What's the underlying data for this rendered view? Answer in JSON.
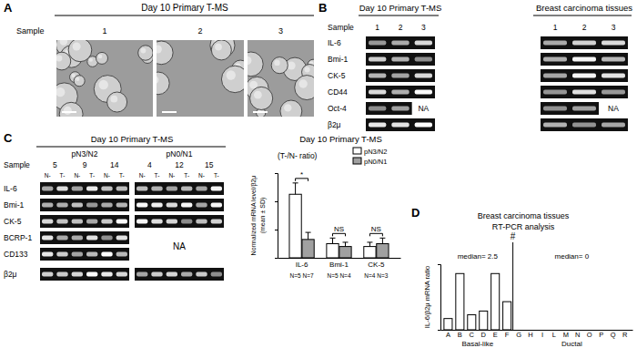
{
  "chart_data": [
    {
      "type": "bar",
      "title": "Day 10 Primary T-MS",
      "subtitle": "(T-/N- ratio)",
      "ylabel": "Normalized mRNA level/β2μ (mean ± SD)",
      "categories": [
        "IL-6",
        "Bmi-1",
        "CK-5"
      ],
      "series": [
        {
          "name": "pN3/N2",
          "color": "#ffffff",
          "values": [
            4.5,
            1.0,
            0.8
          ],
          "errors": [
            0.8,
            0.4,
            0.3
          ],
          "n_labels": [
            "N=5",
            "N=5",
            "N=4"
          ]
        },
        {
          "name": "pN0/N1",
          "color": "#a0a0a0",
          "values": [
            1.3,
            0.8,
            1.0
          ],
          "errors": [
            0.5,
            0.3,
            0.4
          ],
          "n_labels": [
            "N=7",
            "N=4",
            "N=3"
          ]
        }
      ],
      "significance": [
        "*",
        "NS",
        "NS"
      ],
      "ylim": [
        0,
        6
      ],
      "yticks": [
        0,
        2,
        4,
        6
      ],
      "tick_labels": "x",
      "legend": "top-right"
    },
    {
      "type": "bar",
      "title": "Breast carcinoma tissues",
      "subtitle": "RT-PCR analysis",
      "ylabel": "IL-6/β2μ mRNA ratio",
      "color": "#ffffff",
      "divider_label": "#",
      "groups": [
        {
          "label": "Basal-like",
          "annotation": "median= 2.5",
          "categories": [
            "A",
            "B",
            "C",
            "D",
            "E",
            "F"
          ],
          "values": [
            1.2,
            6,
            1.6,
            2,
            6,
            3
          ]
        },
        {
          "label": "Ductal",
          "annotation": "median= 0",
          "categories": [
            "G",
            "H",
            "I",
            "L",
            "M",
            "N",
            "O",
            "P",
            "Q",
            "R"
          ],
          "values": [
            0,
            0,
            0,
            0,
            0,
            0,
            0,
            0,
            0,
            0
          ]
        }
      ],
      "ylim": [
        0,
        7
      ],
      "yticks": [
        0,
        7
      ],
      "tick_labels": "x"
    }
  ],
  "figure": {
    "A": {
      "letter": "A",
      "title": "Day 10 Primary T-MS",
      "sample_label": "Sample",
      "samples": [
        "1",
        "2",
        "3"
      ]
    },
    "B": {
      "letter": "B",
      "na": "NA",
      "rows": [
        {
          "label": "IL-6"
        },
        {
          "label": "Bmi-1"
        },
        {
          "label": "CK-5"
        },
        {
          "label": "CD44"
        },
        {
          "label": "Oct-4",
          "missing": true
        },
        {
          "label": "β2μ"
        }
      ],
      "gels": [
        {
          "title": "Day 10 Primary T-MS",
          "sample_label": "Sample",
          "samples": [
            {
              "label": "1"
            },
            {
              "label": "2"
            },
            {
              "label": "3",
              "missing": true
            }
          ]
        },
        {
          "title": "Breast carcinoma tissues",
          "samples": [
            {
              "label": "1"
            },
            {
              "label": "2"
            },
            {
              "label": "3",
              "missing": true
            }
          ]
        }
      ]
    },
    "C": {
      "letter": "C",
      "title": "Day 10 Primary T-MS",
      "sample_label": "Sample",
      "lanes": [
        "N-",
        "T-"
      ],
      "na": "NA",
      "rows": [
        {
          "label": "IL-6"
        },
        {
          "label": "Bmi-1"
        },
        {
          "label": "CK-5"
        },
        {
          "label": "BCRP-1",
          "missing": true
        },
        {
          "label": "CD133",
          "missing": true
        },
        {
          "label": "β2μ"
        }
      ],
      "groups": [
        {
          "label": "pN3/N2",
          "samples": [
            "5",
            "9",
            "14"
          ]
        },
        {
          "label": "pN0/N1",
          "samples": [
            "4",
            "12",
            "15"
          ],
          "missing": true
        }
      ]
    },
    "D": {
      "letter": "D"
    }
  }
}
